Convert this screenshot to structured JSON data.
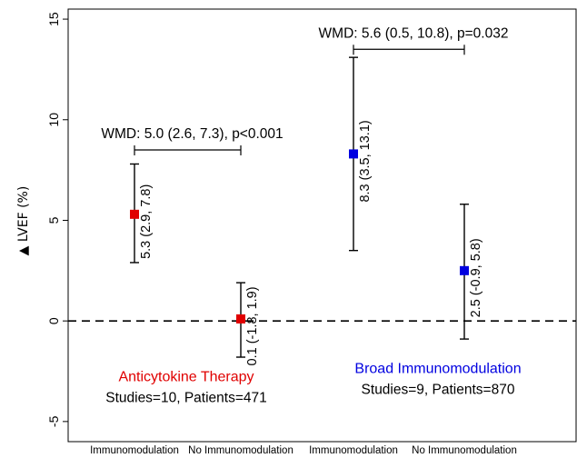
{
  "chart_data": {
    "type": "scatter",
    "ylabel": "▲ LVEF (%)",
    "ylim": [
      -6,
      15.5
    ],
    "yticks": [
      -5,
      0,
      5,
      10,
      15
    ],
    "reference_line": 0,
    "categories": [
      "Immunomodulation",
      "No Immunomodulation",
      "Immunomodulation",
      "No Immunomodulation"
    ],
    "points": [
      {
        "category": "Immunomodulation",
        "group": 0,
        "value": 5.3,
        "lower": 2.9,
        "upper": 7.8,
        "label": "5.3 (2.9, 7.8)",
        "color": "#e00000"
      },
      {
        "category": "No Immunomodulation",
        "group": 0,
        "value": 0.1,
        "lower": -1.8,
        "upper": 1.9,
        "label": "0.1 (-1.8, 1.9)",
        "color": "#e00000"
      },
      {
        "category": "Immunomodulation",
        "group": 1,
        "value": 8.3,
        "lower": 3.5,
        "upper": 13.1,
        "label": "8.3 (3.5, 13.1)",
        "color": "#0000e0"
      },
      {
        "category": "No Immunomodulation",
        "group": 1,
        "value": 2.5,
        "lower": -0.9,
        "upper": 5.8,
        "label": "2.5 (-0.9, 5.8)",
        "color": "#0000e0"
      }
    ],
    "comparisons": [
      {
        "from": 0,
        "to": 1,
        "y": 8.5,
        "label": "WMD: 5.0 (2.6, 7.3), p<0.001"
      },
      {
        "from": 2,
        "to": 3,
        "y": 13.5,
        "label": "WMD: 5.6 (0.5, 10.8), p=0.032"
      }
    ],
    "groups": [
      {
        "title": "Anticytokine Therapy",
        "subtitle": "Studies=10, Patients=471",
        "color": "#e00000",
        "y": -3.0
      },
      {
        "title": "Broad Immunomodulation",
        "subtitle": "Studies=9, Patients=870",
        "color": "#0000e0",
        "y": -2.6
      }
    ],
    "grid": false,
    "legend": "none"
  }
}
